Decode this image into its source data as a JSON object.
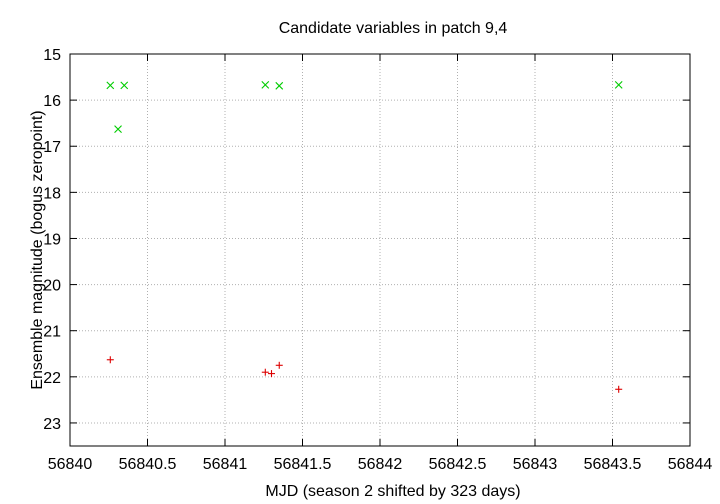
{
  "chart_data": {
    "type": "scatter",
    "title": "Candidate variables in patch 9,4",
    "xlabel": "MJD (season 2 shifted by 323 days)",
    "ylabel": "Ensemble magnitude (bogus zeropoint)",
    "xlim": [
      56840,
      56844
    ],
    "ylim": [
      15,
      23.5
    ],
    "y_inverted": true,
    "x_ticks": [
      56840,
      56840.5,
      56841,
      56841.5,
      56842,
      56842.5,
      56843,
      56843.5,
      56844
    ],
    "x_tick_labels": [
      "56840",
      "56840.5",
      "56841",
      "56841.5",
      "56842",
      "56842.5",
      "56843",
      "56843.5",
      "56844"
    ],
    "y_ticks": [
      15,
      16,
      17,
      18,
      19,
      20,
      21,
      22,
      23
    ],
    "y_tick_labels": [
      "15",
      "16",
      "17",
      "18",
      "19",
      "20",
      "21",
      "22",
      "23"
    ],
    "grid": true,
    "series": [
      {
        "marker": "x",
        "color": "#00cc00",
        "points": [
          {
            "x": 56840.26,
            "y": 15.68
          },
          {
            "x": 56840.35,
            "y": 15.68
          },
          {
            "x": 56840.31,
            "y": 16.63
          },
          {
            "x": 56841.26,
            "y": 15.67
          },
          {
            "x": 56841.35,
            "y": 15.69
          },
          {
            "x": 56843.54,
            "y": 15.67
          }
        ]
      },
      {
        "marker": "+",
        "color": "#dd0000",
        "points": [
          {
            "x": 56840.26,
            "y": 21.63
          },
          {
            "x": 56841.26,
            "y": 21.9
          },
          {
            "x": 56841.3,
            "y": 21.93
          },
          {
            "x": 56841.35,
            "y": 21.75
          },
          {
            "x": 56843.54,
            "y": 22.27
          }
        ]
      }
    ]
  }
}
